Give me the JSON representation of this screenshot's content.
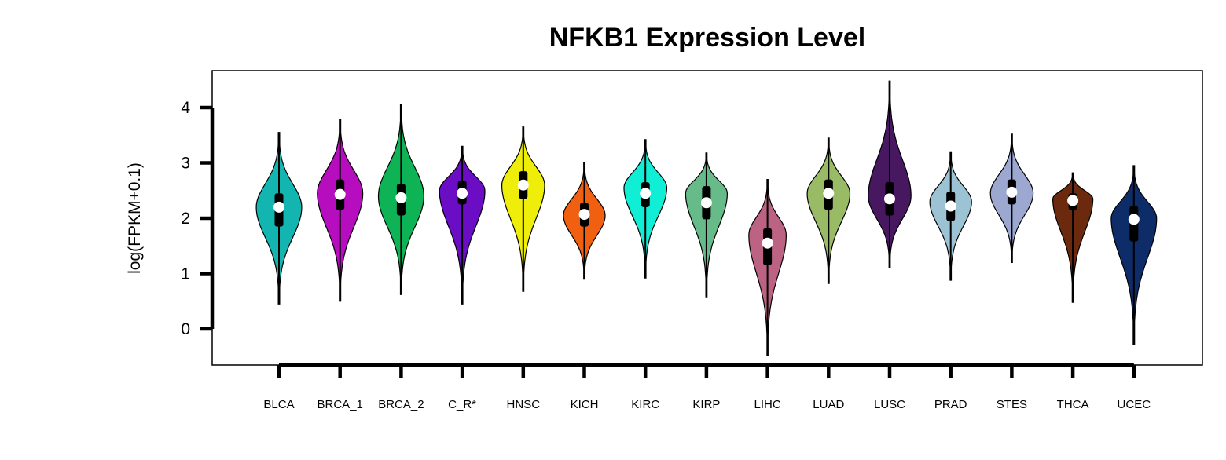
{
  "chart_data": {
    "type": "violin",
    "title": "NFKB1 Expression Level",
    "xlabel": "",
    "ylabel": "log(FPKM+0.1)",
    "ylim": [
      -0.65,
      4.65
    ],
    "yticks": [
      0,
      1,
      2,
      3,
      4
    ],
    "grid": false,
    "legend": "none",
    "categories": [
      "BLCA",
      "BRCA_1",
      "BRCA_2",
      "C_R*",
      "HNSC",
      "KICH",
      "KIRC",
      "KIRP",
      "LIHC",
      "LUAD",
      "LUSC",
      "PRAD",
      "STES",
      "THCA",
      "UCEC"
    ],
    "series": [
      {
        "category": "BLCA",
        "color": "#12B5B0",
        "min": 0.45,
        "q1": 1.85,
        "median": 2.2,
        "q3": 2.45,
        "max": 3.55,
        "mode": 2.2,
        "width": 0.85
      },
      {
        "category": "BRCA_1",
        "color": "#B60DBF",
        "min": 0.5,
        "q1": 2.15,
        "median": 2.43,
        "q3": 2.7,
        "max": 3.78,
        "mode": 2.45,
        "width": 0.85
      },
      {
        "category": "BRCA_2",
        "color": "#0EB356",
        "min": 0.62,
        "q1": 2.05,
        "median": 2.37,
        "q3": 2.62,
        "max": 4.05,
        "mode": 2.4,
        "width": 0.85
      },
      {
        "category": "C_R*",
        "color": "#6A0DC4",
        "min": 0.45,
        "q1": 2.25,
        "median": 2.45,
        "q3": 2.68,
        "max": 3.3,
        "mode": 2.5,
        "width": 0.85
      },
      {
        "category": "HNSC",
        "color": "#EEEE0A",
        "min": 0.68,
        "q1": 2.35,
        "median": 2.6,
        "q3": 2.85,
        "max": 3.65,
        "mode": 2.6,
        "width": 0.8
      },
      {
        "category": "KICH",
        "color": "#F06010",
        "min": 0.9,
        "q1": 1.85,
        "median": 2.07,
        "q3": 2.28,
        "max": 3.0,
        "mode": 2.05,
        "width": 0.78
      },
      {
        "category": "KIRC",
        "color": "#10EED6",
        "min": 0.92,
        "q1": 2.2,
        "median": 2.45,
        "q3": 2.65,
        "max": 3.42,
        "mode": 2.55,
        "width": 0.8
      },
      {
        "category": "KIRP",
        "color": "#66BB88",
        "min": 0.58,
        "q1": 1.98,
        "median": 2.28,
        "q3": 2.58,
        "max": 3.18,
        "mode": 2.45,
        "width": 0.78
      },
      {
        "category": "LIHC",
        "color": "#BC6283",
        "min": -0.48,
        "q1": 1.15,
        "median": 1.55,
        "q3": 1.82,
        "max": 2.7,
        "mode": 1.7,
        "width": 0.7
      },
      {
        "category": "LUAD",
        "color": "#99BB66",
        "min": 0.82,
        "q1": 2.15,
        "median": 2.45,
        "q3": 2.7,
        "max": 3.45,
        "mode": 2.45,
        "width": 0.8
      },
      {
        "category": "LUSC",
        "color": "#47175F",
        "min": 1.1,
        "q1": 2.05,
        "median": 2.35,
        "q3": 2.65,
        "max": 4.48,
        "mode": 2.4,
        "width": 0.8
      },
      {
        "category": "PRAD",
        "color": "#9CC3D4",
        "min": 0.88,
        "q1": 1.95,
        "median": 2.22,
        "q3": 2.48,
        "max": 3.2,
        "mode": 2.3,
        "width": 0.78
      },
      {
        "category": "STES",
        "color": "#9CA8D0",
        "min": 1.2,
        "q1": 2.25,
        "median": 2.47,
        "q3": 2.7,
        "max": 3.52,
        "mode": 2.45,
        "width": 0.8
      },
      {
        "category": "THCA",
        "color": "#6B2A0D",
        "min": 0.48,
        "q1": 2.15,
        "median": 2.32,
        "q3": 2.45,
        "max": 2.82,
        "mode": 2.35,
        "width": 0.75
      },
      {
        "category": "UCEC",
        "color": "#0D2C68",
        "min": -0.28,
        "q1": 1.58,
        "median": 1.98,
        "q3": 2.22,
        "max": 2.95,
        "mode": 2.0,
        "width": 0.85
      }
    ]
  }
}
